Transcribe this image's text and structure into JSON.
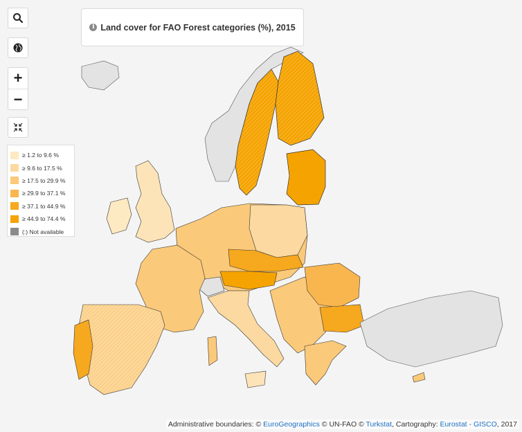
{
  "title": "Land cover for FAO Forest categories (%), 2015",
  "controls": {
    "search_icon": "search-icon",
    "globe_icon": "globe-icon",
    "zoom_in": "+",
    "zoom_out": "−",
    "collapse_icon": "collapse-arrows-icon"
  },
  "legend": [
    {
      "label": "≥ 1.2 to 9.6 %",
      "color": "#fde9c2"
    },
    {
      "label": "≥ 9.6 to 17.5 %",
      "color": "#fcd9a0"
    },
    {
      "label": "≥ 17.5 to 29.9 %",
      "color": "#fbc97a"
    },
    {
      "label": "≥ 29.9 to 37.1 %",
      "color": "#f9b64f"
    },
    {
      "label": "≥ 37.1 to 44.9 %",
      "color": "#f6a81e"
    },
    {
      "label": "≥ 44.9 to 74.4 %",
      "color": "#f5a300"
    },
    {
      "label": "(:) Not available",
      "color": "#8b8b8b"
    }
  ],
  "attribution": {
    "prefix": "Administrative boundaries: © ",
    "eurogeographics": "EuroGeographics",
    "sep1": " © ",
    "unfao": "UN-FAO",
    "sep2": " © ",
    "turkstat": "Turkstat",
    "carto": ", Cartography: ",
    "eurostat": "Eurostat",
    "dash": " - ",
    "gisco": "GISCO",
    "year": ", 2017"
  },
  "colors": {
    "sea": "#f4f4f4",
    "not_available_land": "#e3e3e3",
    "border": "#333333"
  }
}
